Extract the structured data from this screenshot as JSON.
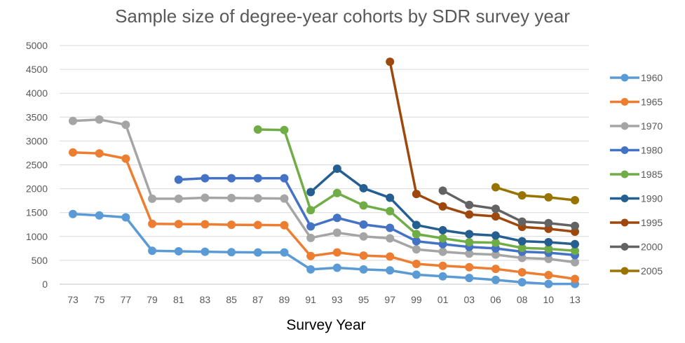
{
  "chart_data": {
    "type": "line",
    "title": "Sample size of degree-year cohorts by SDR survey year",
    "xlabel": "Survey Year",
    "ylabel": "",
    "ylim": [
      0,
      5000
    ],
    "yticks": [
      0,
      500,
      1000,
      1500,
      2000,
      2500,
      3000,
      3500,
      4000,
      4500,
      5000
    ],
    "grid": "horizontal",
    "legend_position": "right",
    "categories": [
      "73",
      "75",
      "77",
      "79",
      "81",
      "83",
      "85",
      "87",
      "89",
      "91",
      "93",
      "95",
      "97",
      "99",
      "01",
      "03",
      "06",
      "08",
      "10",
      "13"
    ],
    "series": [
      {
        "name": "1960",
        "color": "#5B9BD5",
        "values": [
          1470,
          1440,
          1400,
          700,
          690,
          680,
          670,
          665,
          665,
          310,
          345,
          310,
          290,
          200,
          165,
          130,
          90,
          40,
          5,
          5
        ]
      },
      {
        "name": "1965",
        "color": "#ED7D31",
        "values": [
          2760,
          2740,
          2630,
          1265,
          1260,
          1255,
          1245,
          1240,
          1235,
          590,
          665,
          600,
          580,
          425,
          385,
          355,
          320,
          250,
          190,
          110
        ]
      },
      {
        "name": "1970",
        "color": "#A5A5A5",
        "values": [
          3420,
          3450,
          3340,
          1790,
          1790,
          1810,
          1805,
          1800,
          1795,
          970,
          1080,
          1000,
          960,
          730,
          680,
          640,
          620,
          550,
          530,
          460
        ]
      },
      {
        "name": "1980",
        "color": "#4472C4",
        "values": [
          null,
          null,
          null,
          null,
          2190,
          2220,
          2220,
          2220,
          2220,
          1210,
          1390,
          1250,
          1180,
          900,
          840,
          780,
          750,
          680,
          660,
          610
        ]
      },
      {
        "name": "1985",
        "color": "#70AD47",
        "values": [
          null,
          null,
          null,
          null,
          null,
          null,
          null,
          3240,
          3230,
          1550,
          1910,
          1650,
          1530,
          1050,
          960,
          880,
          870,
          760,
          740,
          700
        ]
      },
      {
        "name": "1990",
        "color": "#255E91",
        "values": [
          null,
          null,
          null,
          null,
          null,
          null,
          null,
          null,
          null,
          1930,
          2420,
          2010,
          1810,
          1240,
          1130,
          1050,
          1020,
          900,
          880,
          840
        ]
      },
      {
        "name": "1995",
        "color": "#9E480E",
        "values": [
          null,
          null,
          null,
          null,
          null,
          null,
          null,
          null,
          null,
          null,
          null,
          null,
          4660,
          1890,
          1630,
          1460,
          1420,
          1200,
          1160,
          1100
        ]
      },
      {
        "name": "2000",
        "color": "#636363",
        "values": [
          null,
          null,
          null,
          null,
          null,
          null,
          null,
          null,
          null,
          null,
          null,
          null,
          null,
          null,
          1960,
          1660,
          1580,
          1310,
          1280,
          1220
        ]
      },
      {
        "name": "2005",
        "color": "#997300",
        "values": [
          null,
          null,
          null,
          null,
          null,
          null,
          null,
          null,
          null,
          null,
          null,
          null,
          null,
          null,
          null,
          null,
          2030,
          1860,
          1820,
          1760
        ]
      }
    ]
  }
}
